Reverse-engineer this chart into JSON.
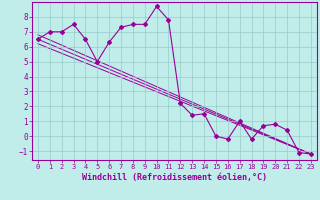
{
  "xlabel": "Windchill (Refroidissement éolien,°C)",
  "bg_color": "#c0ecea",
  "line_color": "#990099",
  "grid_color": "#99cccc",
  "xlim": [
    -0.5,
    23.5
  ],
  "ylim": [
    -1.6,
    9.0
  ],
  "yticks": [
    -1,
    0,
    1,
    2,
    3,
    4,
    5,
    6,
    7,
    8
  ],
  "xticks": [
    0,
    1,
    2,
    3,
    4,
    5,
    6,
    7,
    8,
    9,
    10,
    11,
    12,
    13,
    14,
    15,
    16,
    17,
    18,
    19,
    20,
    21,
    22,
    23
  ],
  "series_x": [
    0,
    1,
    2,
    3,
    4,
    5,
    6,
    7,
    8,
    9,
    10,
    11,
    12,
    13,
    14,
    15,
    16,
    17,
    18,
    19,
    20,
    21,
    22,
    23
  ],
  "series_y": [
    6.5,
    7.0,
    7.0,
    7.5,
    6.5,
    5.0,
    6.3,
    7.3,
    7.5,
    7.5,
    8.7,
    7.8,
    2.2,
    1.4,
    1.5,
    0.0,
    -0.2,
    1.0,
    -0.2,
    0.7,
    0.8,
    0.4,
    -1.1,
    -1.2
  ],
  "line1_x": [
    0,
    23
  ],
  "line1_y": [
    6.8,
    -1.2
  ],
  "line2_x": [
    0,
    23
  ],
  "line2_y": [
    6.5,
    -1.2
  ],
  "line3_x": [
    0,
    23
  ],
  "line3_y": [
    6.2,
    -1.2
  ],
  "tick_fontsize": 5.0,
  "xlabel_fontsize": 6.0
}
